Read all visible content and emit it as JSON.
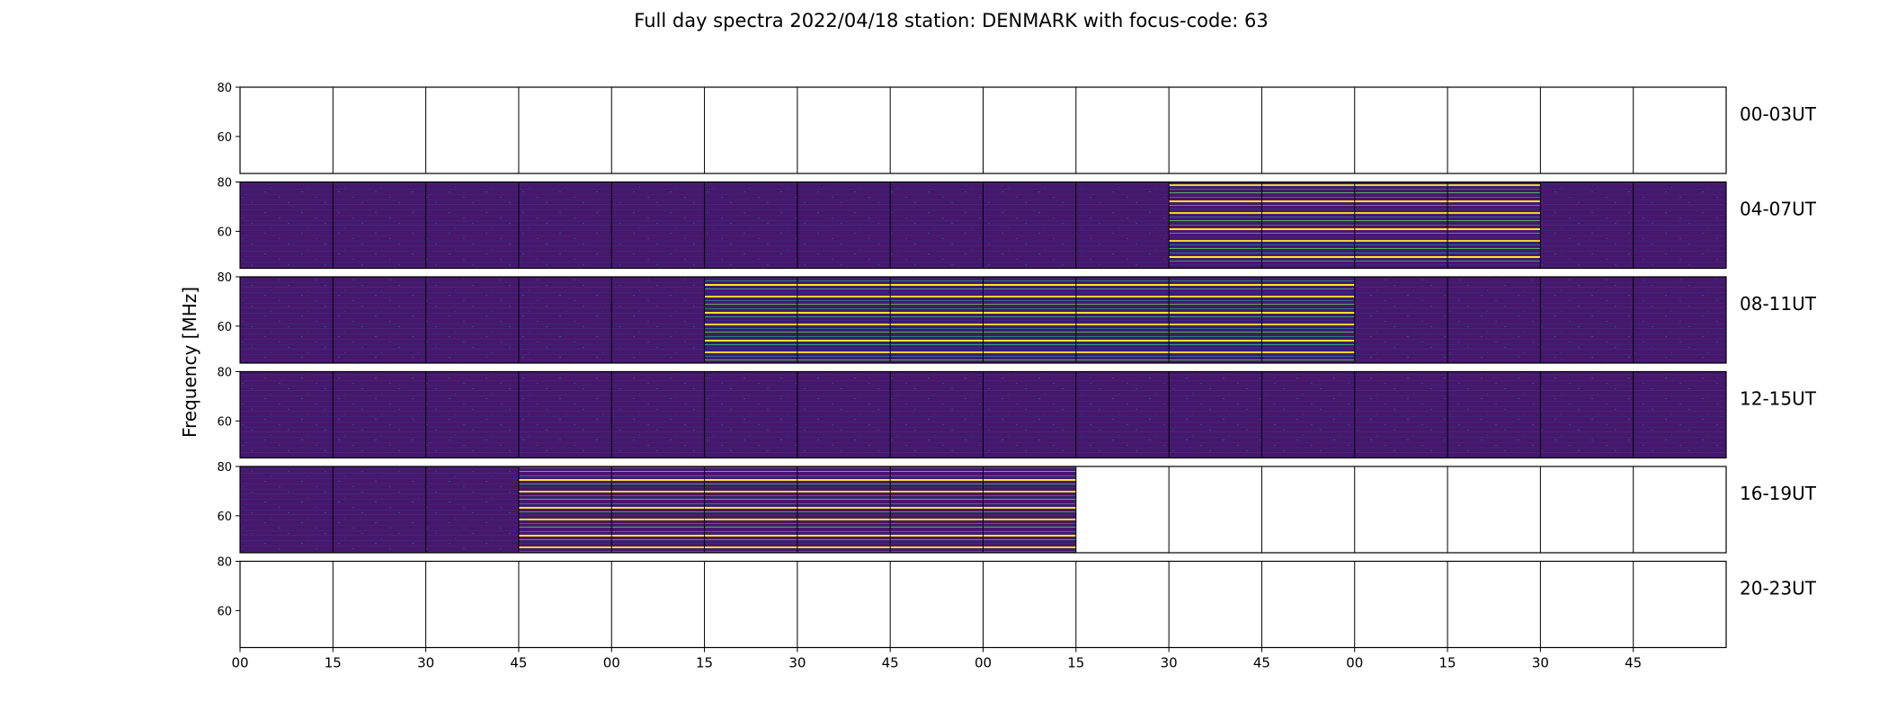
{
  "chart_data": {
    "type": "heatmap",
    "title": "Full day spectra 2022/04/18 station: DENMARK with focus-code: 63",
    "ylabel": "Frequency [MHz]",
    "yticks": [
      "80",
      "60"
    ],
    "ylim": [
      45,
      80
    ],
    "xticks": [
      "00",
      "15",
      "30",
      "45",
      "00",
      "15",
      "30",
      "45",
      "00",
      "15",
      "30",
      "45",
      "00",
      "15",
      "30",
      "45"
    ],
    "colormap": "viridis",
    "colors": {
      "background": "#46186d",
      "low": "#3b2a80",
      "mid": "#21918c",
      "high": "#fde725"
    },
    "panels_per_row": 16,
    "rows": [
      {
        "label": "00-03UT",
        "filled_panels": 0,
        "bright_panels": []
      },
      {
        "label": "04-07UT",
        "filled_panels": 16,
        "bright_panels": [
          10,
          11,
          12,
          13
        ]
      },
      {
        "label": "08-11UT",
        "filled_panels": 16,
        "bright_panels": [
          5,
          6,
          7,
          8,
          9,
          10,
          11
        ]
      },
      {
        "label": "12-15UT",
        "filled_panels": 16,
        "bright_panels": []
      },
      {
        "label": "16-19UT",
        "filled_panels": 9,
        "bright_panels": [
          3,
          4,
          5,
          6,
          7,
          8
        ]
      },
      {
        "label": "20-23UT",
        "filled_panels": 0,
        "bright_panels": []
      }
    ]
  }
}
